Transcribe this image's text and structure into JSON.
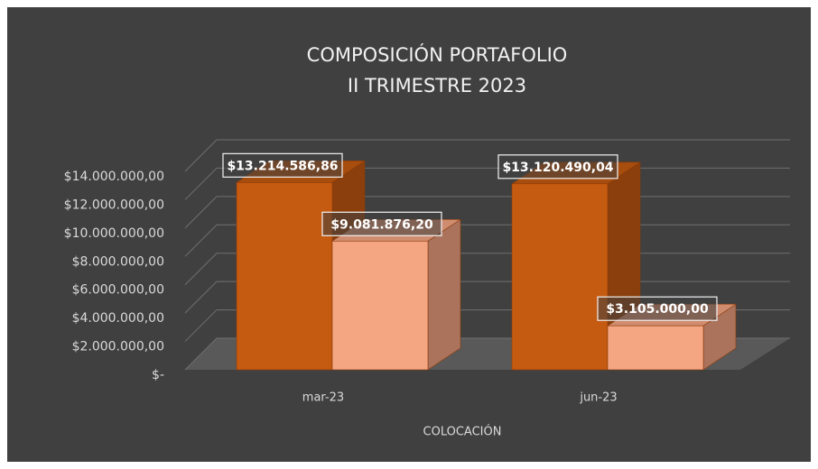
{
  "chart_data": {
    "type": "bar3d",
    "title": "COMPOSICIÓN PORTAFOLIO",
    "subtitle": "II TRIMESTRE 2023",
    "x_axis_label": "COLOCACIÓN",
    "categories": [
      "mar-23",
      "jun-23"
    ],
    "series": [
      {
        "color": "#c55a11",
        "values": [
          13214586.86,
          13120490.04
        ],
        "value_labels": [
          "$13.214.586,86",
          "$13.120.490,04"
        ]
      },
      {
        "color": "#f4a582",
        "values": [
          9081876.2,
          3105000.0
        ],
        "value_labels": [
          "$9.081.876,20",
          "$3.105.000,00"
        ]
      }
    ],
    "ylim": [
      0,
      14000000
    ],
    "yticks": [
      {
        "value": 0,
        "label": "$-"
      },
      {
        "value": 2000000,
        "label": "$2.000.000,00"
      },
      {
        "value": 4000000,
        "label": "$4.000.000,00"
      },
      {
        "value": 6000000,
        "label": "$6.000.000,00"
      },
      {
        "value": 8000000,
        "label": "$8.000.000,00"
      },
      {
        "value": 10000000,
        "label": "$10.000.000,00"
      },
      {
        "value": 12000000,
        "label": "$12.000.000,00"
      },
      {
        "value": 14000000,
        "label": "$14.000.000,00"
      }
    ],
    "grid": true
  }
}
